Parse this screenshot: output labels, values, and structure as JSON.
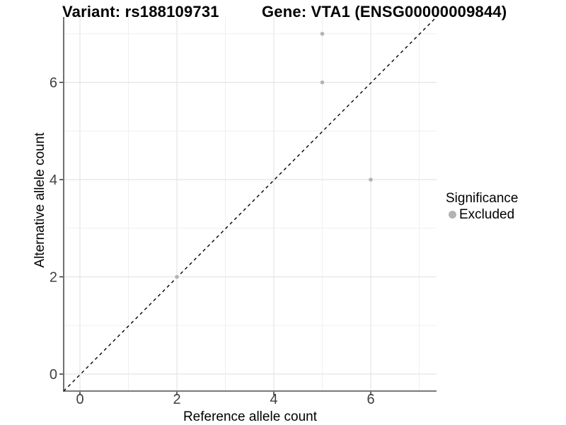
{
  "figure": {
    "title_left": "Variant: rs188109731",
    "title_right": "Gene: VTA1 (ENSG00000009844)"
  },
  "axes": {
    "x_label": "Reference allele count",
    "y_label": "Alternative allele count",
    "x_tick_labels": [
      "0",
      "2",
      "4",
      "6"
    ],
    "y_tick_labels": [
      "0",
      "2",
      "4",
      "6"
    ]
  },
  "legend": {
    "title": "Significance",
    "items": [
      {
        "label": "Excluded",
        "marker": "dot-icon",
        "color": "#b3b3b3"
      }
    ]
  },
  "colors": {
    "background": "#ffffff",
    "grid_major": "#e4e4e4",
    "grid_minor": "#efefef",
    "axis_line": "#4d4d4d",
    "tick_mark": "#333333",
    "tick_label": "#404040",
    "point": "#b3b3b3",
    "reference_line": "#000000"
  },
  "chart_data": {
    "type": "scatter",
    "title_left": "Variant: rs188109731",
    "title_right": "Gene: VTA1 (ENSG00000009844)",
    "xlabel": "Reference allele count",
    "ylabel": "Alternative allele count",
    "x_ticks": [
      0,
      2,
      4,
      6
    ],
    "y_ticks": [
      0,
      2,
      4,
      6
    ],
    "xlim": [
      -0.35,
      7.35
    ],
    "ylim": [
      -0.35,
      7.35
    ],
    "grid": "light gray lines at every integer 0-7, both axes",
    "legend_position": "right",
    "series": [
      {
        "name": "Excluded",
        "color": "#b3b3b3",
        "points": [
          [
            2,
            2
          ],
          [
            5,
            6
          ],
          [
            5,
            7
          ],
          [
            6,
            4
          ]
        ]
      }
    ],
    "reference_line": {
      "type": "identity y = x",
      "style": "dashed",
      "color": "#000000"
    }
  }
}
